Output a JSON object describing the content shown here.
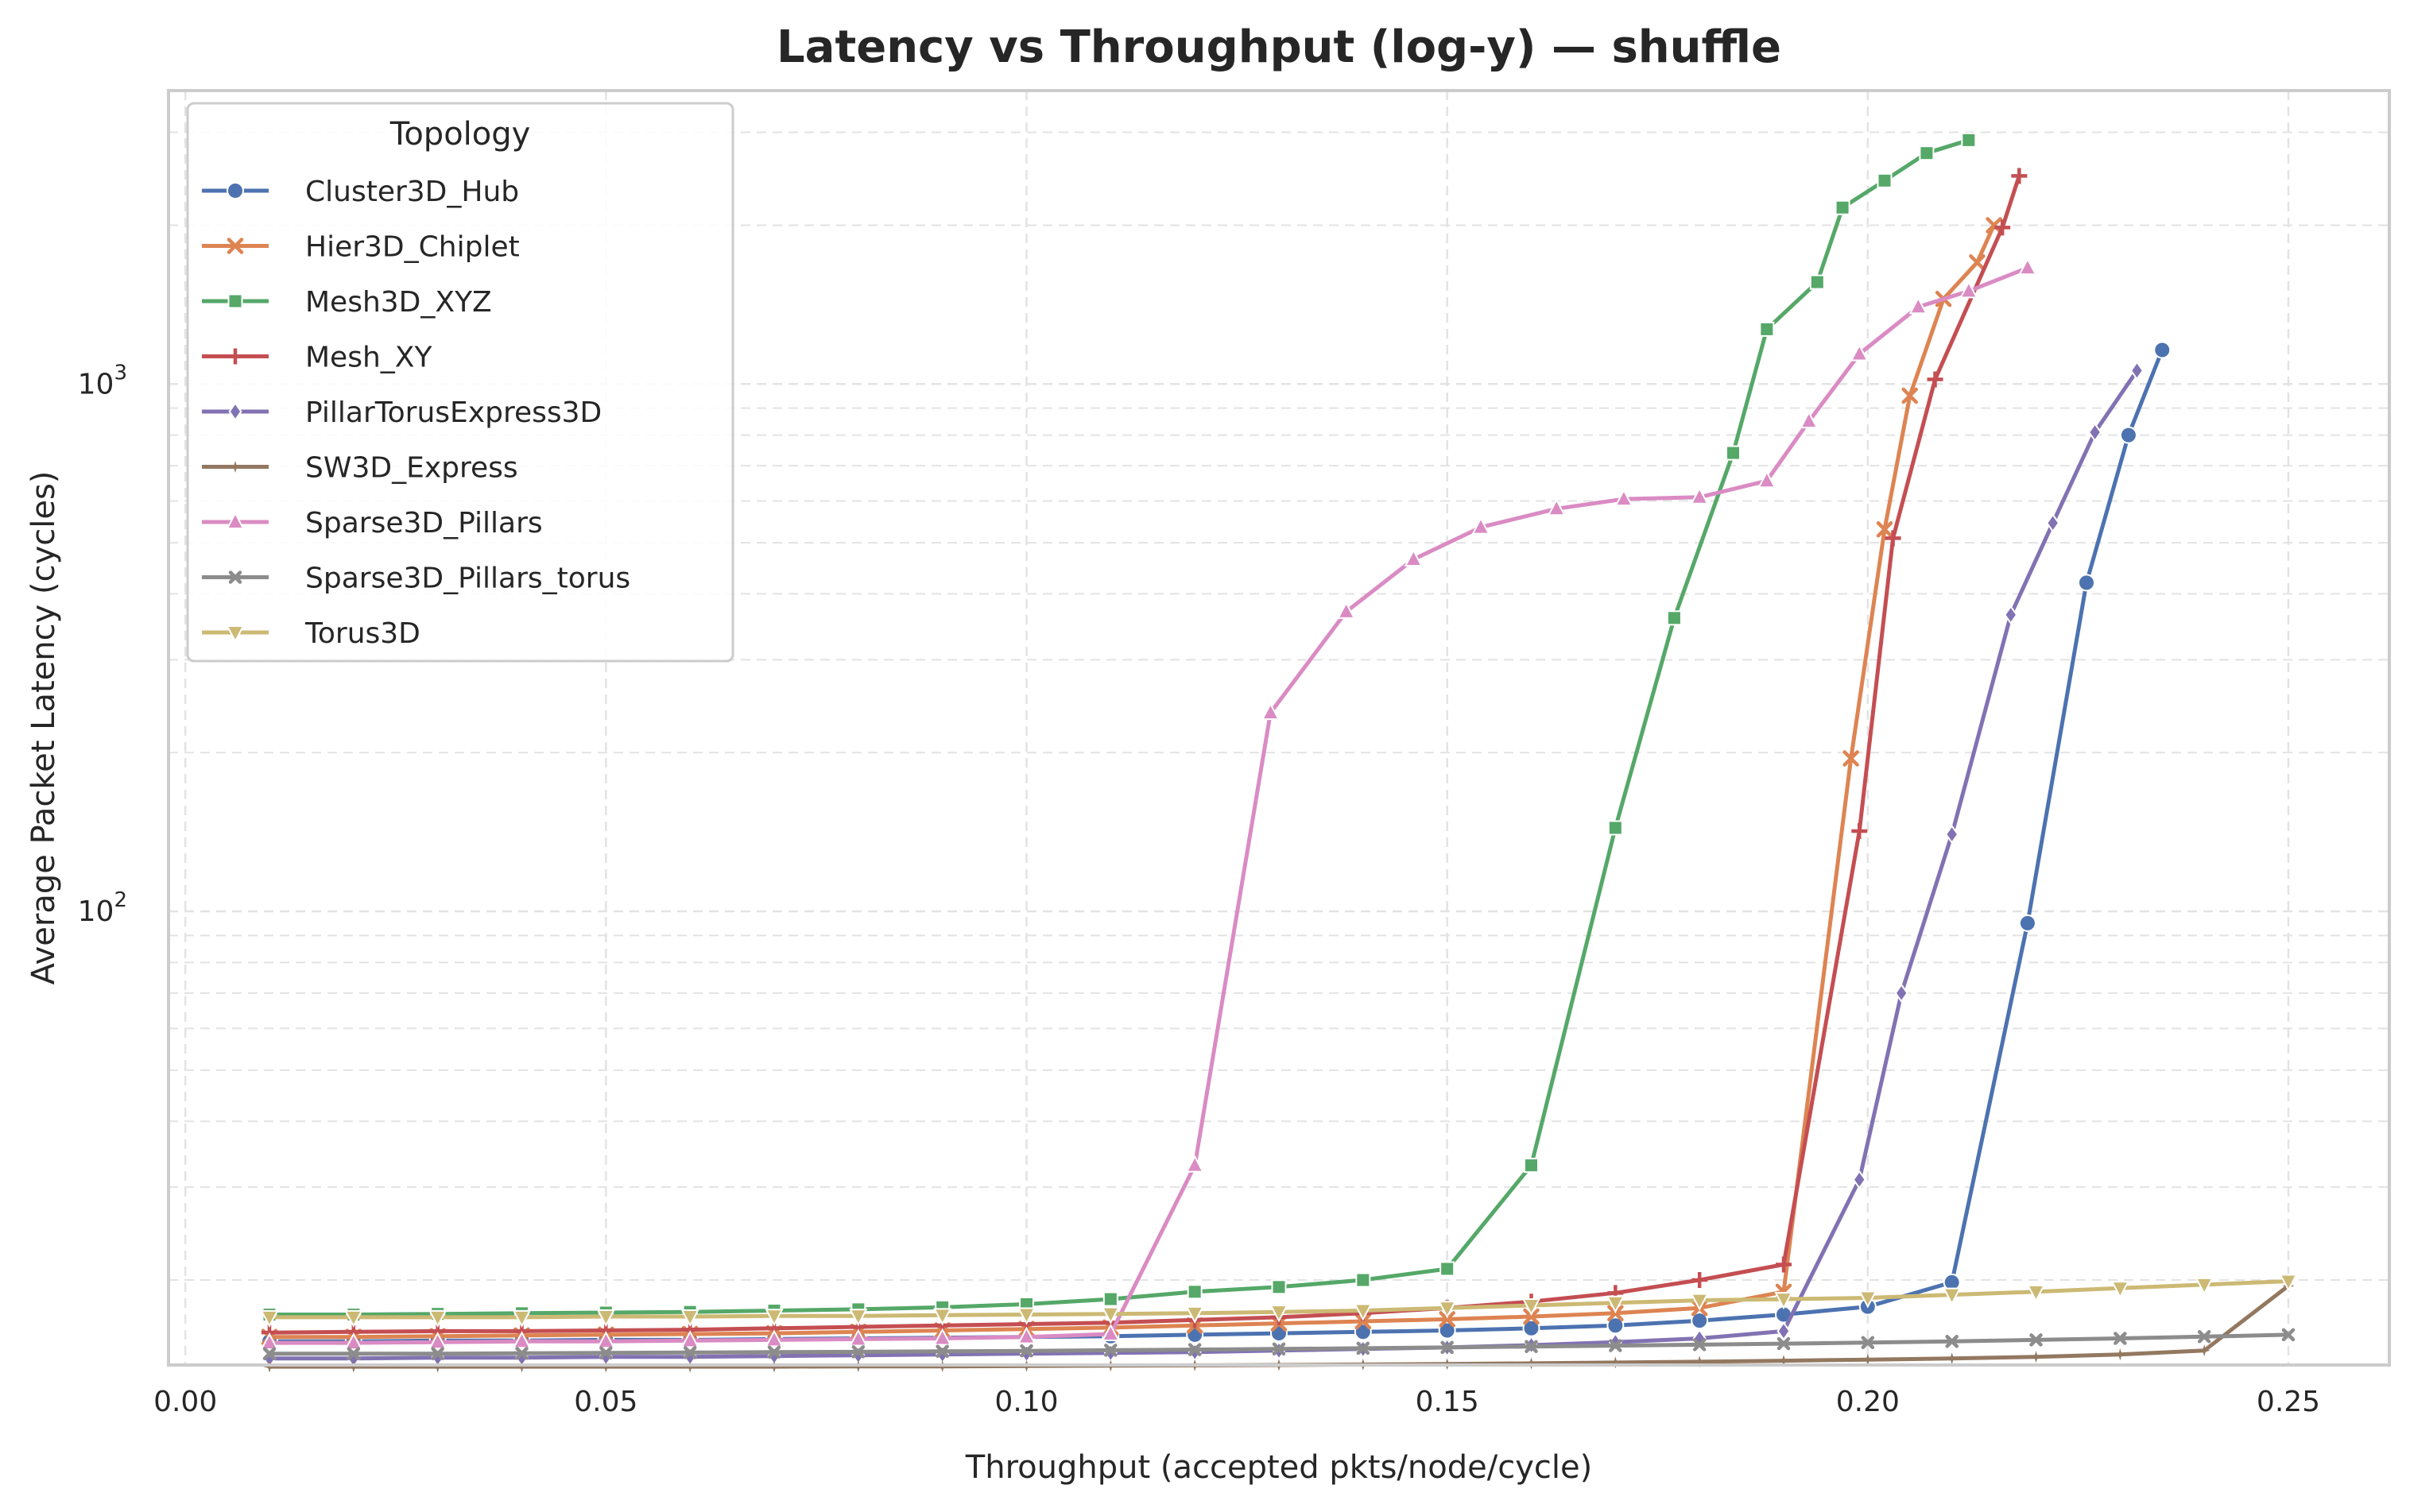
{
  "chart_data": {
    "type": "line",
    "title": "Latency vs Throughput (log-y) — shuffle",
    "xlabel": "Throughput (accepted pkts/node/cycle)",
    "ylabel": "Average Packet Latency (cycles)",
    "xlim": [
      -0.002,
      0.262
    ],
    "ylim": [
      13.8,
      3600
    ],
    "yscale": "log",
    "x_ticks": [
      0.0,
      0.05,
      0.1,
      0.15,
      0.2,
      0.25
    ],
    "x_tick_labels": [
      "0.00",
      "0.05",
      "0.10",
      "0.15",
      "0.20",
      "0.25"
    ],
    "y_ticks": [
      100,
      1000
    ],
    "y_tick_labels": [
      "10²",
      "10³"
    ],
    "grid": true,
    "legend": {
      "title": "Topology",
      "position": "top-left"
    },
    "series": [
      {
        "name": "Cluster3D_Hub",
        "color": "#4c72b0",
        "marker": "circle",
        "x": [
          0.01,
          0.02,
          0.03,
          0.04,
          0.05,
          0.06,
          0.07,
          0.08,
          0.09,
          0.1,
          0.11,
          0.12,
          0.13,
          0.14,
          0.15,
          0.16,
          0.17,
          0.18,
          0.19,
          0.2,
          0.21,
          0.219,
          0.226,
          0.231,
          0.235
        ],
        "y": [
          15.3,
          15.3,
          15.35,
          15.35,
          15.4,
          15.4,
          15.45,
          15.5,
          15.55,
          15.6,
          15.65,
          15.75,
          15.85,
          15.95,
          16.05,
          16.2,
          16.4,
          16.75,
          17.2,
          17.8,
          19.8,
          95,
          420,
          800,
          1160
        ]
      },
      {
        "name": "Hier3D_Chiplet",
        "color": "#dd8452",
        "marker": "x",
        "x": [
          0.01,
          0.02,
          0.03,
          0.04,
          0.05,
          0.06,
          0.07,
          0.08,
          0.09,
          0.1,
          0.11,
          0.12,
          0.13,
          0.14,
          0.15,
          0.16,
          0.17,
          0.18,
          0.19,
          0.198,
          0.202,
          0.205,
          0.209,
          0.213,
          0.215
        ],
        "y": [
          15.6,
          15.6,
          15.65,
          15.7,
          15.75,
          15.8,
          15.85,
          15.95,
          16.05,
          16.15,
          16.25,
          16.4,
          16.55,
          16.7,
          16.85,
          17.05,
          17.3,
          17.7,
          19.0,
          195,
          530,
          950,
          1450,
          1700,
          2000
        ]
      },
      {
        "name": "Mesh3D_XYZ",
        "color": "#55a868",
        "marker": "square",
        "x": [
          0.01,
          0.02,
          0.03,
          0.04,
          0.05,
          0.06,
          0.07,
          0.08,
          0.09,
          0.1,
          0.11,
          0.12,
          0.13,
          0.14,
          0.15,
          0.16,
          0.17,
          0.177,
          0.184,
          0.188,
          0.194,
          0.197,
          0.202,
          0.207,
          0.212
        ],
        "y": [
          17.2,
          17.2,
          17.25,
          17.3,
          17.35,
          17.4,
          17.5,
          17.6,
          17.75,
          18.0,
          18.4,
          19.0,
          19.4,
          20.0,
          21.0,
          33,
          144,
          360,
          740,
          1270,
          1560,
          2160,
          2430,
          2740,
          2900
        ]
      },
      {
        "name": "Mesh_XY",
        "color": "#c44e52",
        "marker": "plus",
        "x": [
          0.01,
          0.02,
          0.03,
          0.04,
          0.05,
          0.06,
          0.07,
          0.08,
          0.09,
          0.1,
          0.11,
          0.12,
          0.13,
          0.14,
          0.15,
          0.16,
          0.17,
          0.18,
          0.19,
          0.199,
          0.203,
          0.208,
          0.216,
          0.218
        ],
        "y": [
          15.9,
          15.95,
          16.0,
          16.0,
          16.05,
          16.1,
          16.2,
          16.3,
          16.4,
          16.5,
          16.6,
          16.8,
          17.0,
          17.3,
          17.7,
          18.2,
          18.9,
          20.0,
          21.4,
          142,
          510,
          1020,
          1980,
          2480
        ]
      },
      {
        "name": "PillarTorusExpress3D",
        "color": "#8172b3",
        "marker": "diamond",
        "x": [
          0.01,
          0.02,
          0.03,
          0.04,
          0.05,
          0.06,
          0.07,
          0.08,
          0.09,
          0.1,
          0.11,
          0.12,
          0.13,
          0.14,
          0.15,
          0.16,
          0.17,
          0.18,
          0.19,
          0.199,
          0.204,
          0.21,
          0.217,
          0.222,
          0.227,
          0.232
        ],
        "y": [
          14.2,
          14.2,
          14.25,
          14.25,
          14.3,
          14.3,
          14.35,
          14.4,
          14.45,
          14.5,
          14.55,
          14.6,
          14.7,
          14.8,
          14.9,
          15.05,
          15.25,
          15.5,
          16.0,
          31,
          70,
          140,
          365,
          545,
          810,
          1060
        ]
      },
      {
        "name": "SW3D_Express",
        "color": "#937860",
        "marker": "star",
        "x": [
          0.01,
          0.02,
          0.03,
          0.04,
          0.05,
          0.06,
          0.07,
          0.08,
          0.09,
          0.1,
          0.11,
          0.12,
          0.13,
          0.14,
          0.15,
          0.16,
          0.17,
          0.18,
          0.19,
          0.2,
          0.21,
          0.22,
          0.23,
          0.24,
          0.25
        ],
        "y": [
          13.7,
          13.7,
          13.7,
          13.7,
          13.7,
          13.7,
          13.7,
          13.72,
          13.72,
          13.74,
          13.76,
          13.78,
          13.8,
          13.83,
          13.86,
          13.9,
          13.95,
          14.0,
          14.06,
          14.13,
          14.2,
          14.3,
          14.45,
          14.7,
          19.5
        ]
      },
      {
        "name": "Sparse3D_Pillars",
        "color": "#da8bc3",
        "marker": "triangle-up",
        "x": [
          0.01,
          0.02,
          0.03,
          0.04,
          0.05,
          0.06,
          0.07,
          0.08,
          0.09,
          0.1,
          0.11,
          0.12,
          0.129,
          0.138,
          0.146,
          0.154,
          0.163,
          0.171,
          0.18,
          0.188,
          0.193,
          0.199,
          0.206,
          0.212,
          0.219
        ],
        "y": [
          15.2,
          15.2,
          15.25,
          15.3,
          15.3,
          15.35,
          15.4,
          15.45,
          15.5,
          15.6,
          15.8,
          33,
          238,
          370,
          465,
          535,
          580,
          605,
          610,
          655,
          850,
          1140,
          1400,
          1500,
          1660
        ]
      },
      {
        "name": "Sparse3D_Pillars_torus",
        "color": "#8c8c8c",
        "marker": "x-small",
        "x": [
          0.01,
          0.02,
          0.03,
          0.04,
          0.05,
          0.06,
          0.07,
          0.08,
          0.09,
          0.1,
          0.11,
          0.12,
          0.13,
          0.14,
          0.15,
          0.16,
          0.17,
          0.18,
          0.19,
          0.2,
          0.21,
          0.22,
          0.23,
          0.24,
          0.25
        ],
        "y": [
          14.5,
          14.5,
          14.5,
          14.52,
          14.55,
          14.57,
          14.6,
          14.62,
          14.65,
          14.68,
          14.72,
          14.76,
          14.8,
          14.85,
          14.9,
          14.96,
          15.02,
          15.08,
          15.15,
          15.22,
          15.3,
          15.4,
          15.5,
          15.62,
          15.75
        ]
      },
      {
        "name": "Torus3D",
        "color": "#ccb974",
        "marker": "triangle-down",
        "x": [
          0.01,
          0.02,
          0.03,
          0.04,
          0.05,
          0.06,
          0.07,
          0.08,
          0.09,
          0.1,
          0.11,
          0.12,
          0.13,
          0.14,
          0.15,
          0.16,
          0.17,
          0.18,
          0.19,
          0.2,
          0.21,
          0.22,
          0.23,
          0.24,
          0.25
        ],
        "y": [
          17.0,
          17.0,
          17.0,
          17.0,
          17.05,
          17.05,
          17.1,
          17.1,
          17.15,
          17.2,
          17.25,
          17.3,
          17.4,
          17.5,
          17.7,
          17.9,
          18.1,
          18.3,
          18.4,
          18.5,
          18.75,
          19.0,
          19.3,
          19.6,
          19.9
        ]
      }
    ]
  }
}
